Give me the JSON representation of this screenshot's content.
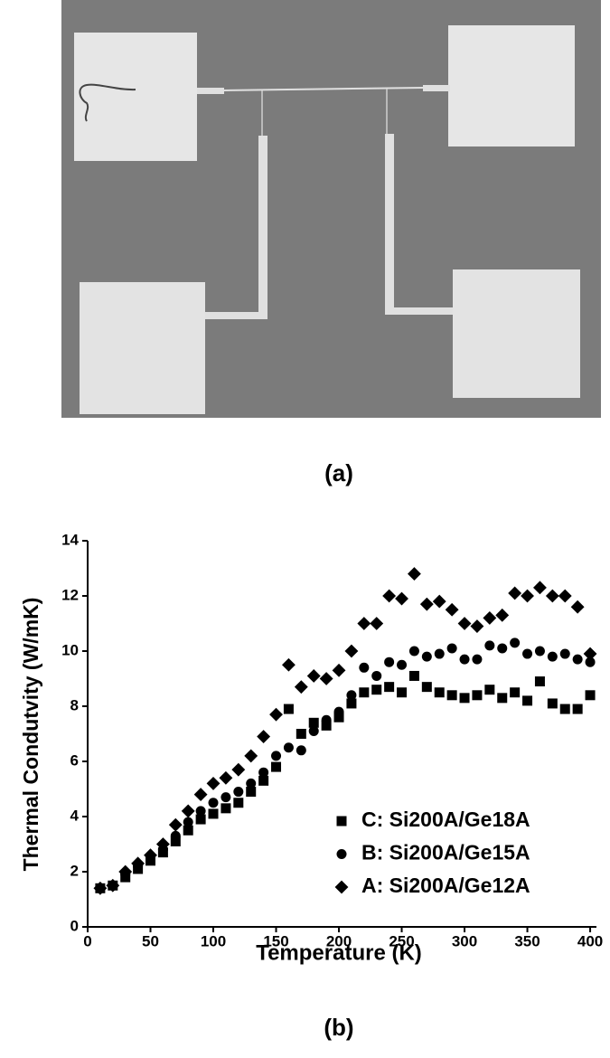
{
  "captions": [
    "(a)",
    "(b)"
  ],
  "chart_data": {
    "type": "scatter",
    "x_label": "Temperature (K)",
    "y_label": "Thermal Condutvity (W/mK)",
    "xlim": [
      0,
      405
    ],
    "ylim": [
      0,
      14
    ],
    "xticks": [
      0,
      50,
      100,
      150,
      200,
      250,
      300,
      350,
      400
    ],
    "yticks": [
      0,
      2,
      4,
      6,
      8,
      10,
      12,
      14
    ],
    "legend": "lower right",
    "x": [
      10,
      20,
      30,
      40,
      50,
      60,
      70,
      80,
      90,
      100,
      110,
      120,
      130,
      140,
      150,
      160,
      170,
      180,
      190,
      200,
      210,
      220,
      230,
      240,
      250,
      260,
      270,
      280,
      290,
      300,
      310,
      320,
      330,
      340,
      350,
      360,
      370,
      380,
      390,
      400
    ],
    "series": [
      {
        "name": "C: Si200A/Ge18A",
        "color": "#000000",
        "marker": "square",
        "values": [
          1.4,
          1.5,
          1.8,
          2.1,
          2.4,
          2.7,
          3.1,
          3.5,
          3.9,
          4.1,
          4.3,
          4.5,
          4.9,
          5.3,
          5.8,
          7.9,
          7.0,
          7.4,
          7.3,
          7.6,
          8.1,
          8.5,
          8.6,
          8.7,
          8.5,
          9.1,
          8.7,
          8.5,
          8.4,
          8.3,
          8.4,
          8.6,
          8.3,
          8.5,
          8.2,
          8.9,
          8.1,
          7.9,
          7.9,
          8.4
        ]
      },
      {
        "name": "B: Si200A/Ge15A",
        "color": "#000000",
        "marker": "circle",
        "values": [
          1.4,
          1.5,
          1.9,
          2.2,
          2.5,
          2.8,
          3.3,
          3.8,
          4.2,
          4.5,
          4.7,
          4.9,
          5.2,
          5.6,
          6.2,
          6.5,
          6.4,
          7.1,
          7.5,
          7.8,
          8.4,
          9.4,
          9.1,
          9.6,
          9.5,
          10.0,
          9.8,
          9.9,
          10.1,
          9.7,
          9.7,
          10.2,
          10.1,
          10.3,
          9.9,
          10.0,
          9.8,
          9.9,
          9.7,
          9.6
        ]
      },
      {
        "name": "A: Si200A/Ge12A",
        "color": "#000000",
        "marker": "diamond",
        "values": [
          1.4,
          1.5,
          2.0,
          2.3,
          2.6,
          3.0,
          3.7,
          4.2,
          4.8,
          5.2,
          5.4,
          5.7,
          6.2,
          6.9,
          7.7,
          9.5,
          8.7,
          9.1,
          9.0,
          9.3,
          10.0,
          11.0,
          11.0,
          12.0,
          11.9,
          12.8,
          11.7,
          11.8,
          11.5,
          11.0,
          10.9,
          11.2,
          11.3,
          12.1,
          12.0,
          12.3,
          12.0,
          12.0,
          11.6,
          9.9
        ]
      }
    ]
  }
}
